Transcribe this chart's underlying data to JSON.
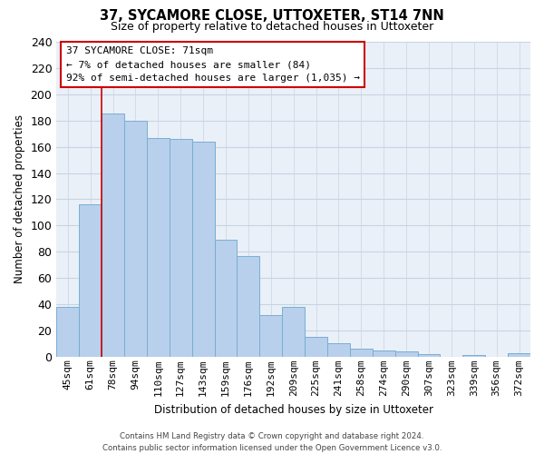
{
  "title": "37, SYCAMORE CLOSE, UTTOXETER, ST14 7NN",
  "subtitle": "Size of property relative to detached houses in Uttoxeter",
  "xlabel": "Distribution of detached houses by size in Uttoxeter",
  "ylabel": "Number of detached properties",
  "bar_labels": [
    "45sqm",
    "61sqm",
    "78sqm",
    "94sqm",
    "110sqm",
    "127sqm",
    "143sqm",
    "159sqm",
    "176sqm",
    "192sqm",
    "209sqm",
    "225sqm",
    "241sqm",
    "258sqm",
    "274sqm",
    "290sqm",
    "307sqm",
    "323sqm",
    "339sqm",
    "356sqm",
    "372sqm"
  ],
  "bar_values": [
    38,
    116,
    185,
    180,
    167,
    166,
    164,
    89,
    77,
    32,
    38,
    15,
    10,
    6,
    5,
    4,
    2,
    0,
    1,
    0,
    3
  ],
  "bar_color": "#b8d0eb",
  "bar_edge_color": "#7aadd5",
  "ylim": [
    0,
    240
  ],
  "yticks": [
    0,
    20,
    40,
    60,
    80,
    100,
    120,
    140,
    160,
    180,
    200,
    220,
    240
  ],
  "vline_x_idx": 1,
  "vline_color": "#cc0000",
  "annotation_title": "37 SYCAMORE CLOSE: 71sqm",
  "annotation_line1": "← 7% of detached houses are smaller (84)",
  "annotation_line2": "92% of semi-detached houses are larger (1,035) →",
  "annotation_box_color": "#ffffff",
  "annotation_box_edge_color": "#cc0000",
  "footer1": "Contains HM Land Registry data © Crown copyright and database right 2024.",
  "footer2": "Contains public sector information licensed under the Open Government Licence v3.0.",
  "background_color": "#eaf0f8",
  "grid_color": "#c8d4e4"
}
